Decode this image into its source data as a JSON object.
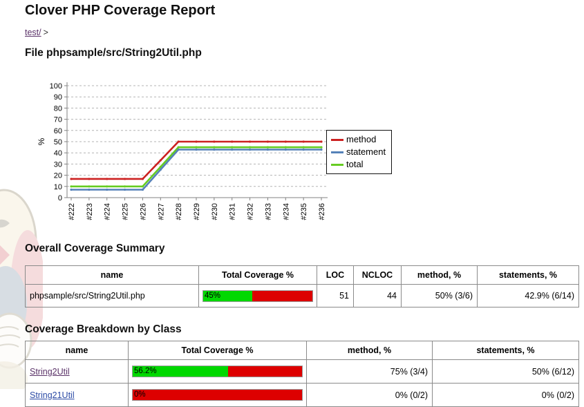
{
  "page": {
    "title": "Clover PHP Coverage Report"
  },
  "breadcrumb": {
    "link": "test/",
    "separator": ">"
  },
  "file_heading": "File phpsample/src/String2Util.php",
  "chart_data": {
    "type": "line",
    "ylabel": "%",
    "ylim": [
      0,
      100
    ],
    "yticks": [
      0,
      10,
      20,
      30,
      40,
      50,
      60,
      70,
      80,
      90,
      100
    ],
    "categories": [
      "#222",
      "#223",
      "#224",
      "#225",
      "#226",
      "#227",
      "#228",
      "#229",
      "#230",
      "#231",
      "#232",
      "#233",
      "#234",
      "#235",
      "#236"
    ],
    "series": [
      {
        "name": "method",
        "color": "#cc2020",
        "values": [
          16.7,
          16.7,
          16.7,
          16.7,
          16.7,
          33.3,
          50,
          50,
          50,
          50,
          50,
          50,
          50,
          50,
          50
        ]
      },
      {
        "name": "statement",
        "color": "#5581b8",
        "values": [
          7.1,
          7.1,
          7.1,
          7.1,
          7.1,
          25,
          42.9,
          42.9,
          42.9,
          42.9,
          42.9,
          42.9,
          42.9,
          42.9,
          42.9
        ]
      },
      {
        "name": "total",
        "color": "#66cc22",
        "values": [
          10,
          10,
          10,
          10,
          10,
          27.5,
          45,
          45,
          45,
          45,
          45,
          45,
          45,
          45,
          45
        ]
      }
    ],
    "legend_position": "right",
    "grid": "dashed-horizontal"
  },
  "summary": {
    "heading": "Overall Coverage Summary",
    "columns": [
      "name",
      "Total Coverage %",
      "LOC",
      "NCLOC",
      "method, %",
      "statements, %"
    ],
    "row": {
      "name": "phpsample/src/String2Util.php",
      "coverage_percent": 45,
      "coverage_label": "45%",
      "loc": "51",
      "ncloc": "44",
      "method": "50% (3/6)",
      "statements": "42.9% (6/14)"
    }
  },
  "breakdown": {
    "heading": "Coverage Breakdown by Class",
    "columns": [
      "name",
      "Total Coverage %",
      "method, %",
      "statements, %"
    ],
    "rows": [
      {
        "name": "String2Util",
        "coverage_percent": 56.2,
        "coverage_label": "56.2%",
        "method": "75% (3/4)",
        "statements": "50% (6/12)"
      },
      {
        "name": "String21Util",
        "coverage_percent": 0,
        "coverage_label": "0%",
        "method": "0% (0/2)",
        "statements": "0% (0/2)"
      }
    ]
  },
  "colors": {
    "link_visited": "#5a3268",
    "link_new": "#2b4aa5",
    "bar_covered": "#00d800",
    "bar_uncovered": "#dd0000",
    "table_border": "#8a8a8a"
  }
}
